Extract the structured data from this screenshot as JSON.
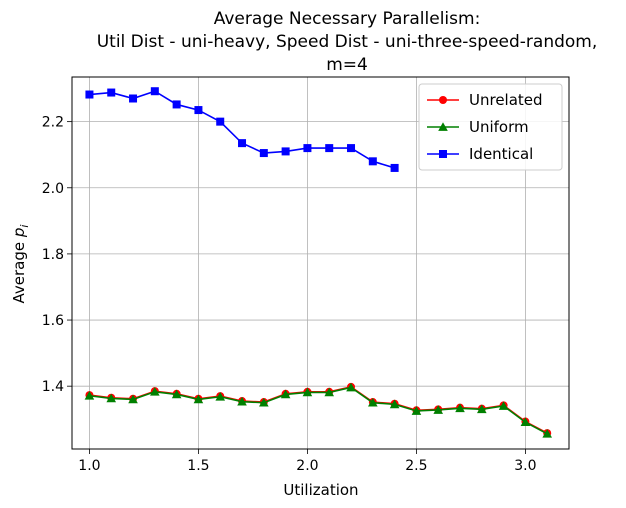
{
  "chart_data": {
    "type": "line",
    "title_lines": [
      "Average Necessary Parallelism:",
      "Util Dist - uni-heavy, Speed Dist - uni-three-speed-random,",
      "m=4"
    ],
    "xlabel": "Utilization",
    "ylabel_main": "Average ",
    "ylabel_sym": "p",
    "ylabel_sub": "i",
    "xlim": [
      0.92,
      3.2
    ],
    "ylim": [
      1.21,
      2.335
    ],
    "x_ticks": [
      1.0,
      1.5,
      2.0,
      2.5,
      3.0
    ],
    "x_tick_labels": [
      "1.0",
      "1.5",
      "2.0",
      "2.5",
      "3.0"
    ],
    "y_ticks": [
      1.4,
      1.6,
      1.8,
      2.0,
      2.2
    ],
    "y_tick_labels": [
      "1.4",
      "1.6",
      "1.8",
      "2.0",
      "2.2"
    ],
    "grid": true,
    "legend_position": "top-right",
    "series": [
      {
        "name": "Unrelated",
        "color": "#ff0000",
        "marker": "circle",
        "x": [
          1.0,
          1.1,
          1.2,
          1.3,
          1.4,
          1.5,
          1.6,
          1.7,
          1.8,
          1.9,
          2.0,
          2.1,
          2.2,
          2.3,
          2.4,
          2.5,
          2.6,
          2.7,
          2.8,
          2.9,
          3.0,
          3.1
        ],
        "y": [
          1.373,
          1.365,
          1.362,
          1.385,
          1.377,
          1.362,
          1.37,
          1.355,
          1.352,
          1.377,
          1.383,
          1.383,
          1.398,
          1.352,
          1.347,
          1.327,
          1.33,
          1.335,
          1.332,
          1.342,
          1.293,
          1.258
        ]
      },
      {
        "name": "Uniform",
        "color": "#008000",
        "marker": "triangle",
        "x": [
          1.0,
          1.1,
          1.2,
          1.3,
          1.4,
          1.5,
          1.6,
          1.7,
          1.8,
          1.9,
          2.0,
          2.1,
          2.2,
          2.3,
          2.4,
          2.5,
          2.6,
          2.7,
          2.8,
          2.9,
          3.0,
          3.1
        ],
        "y": [
          1.371,
          1.363,
          1.36,
          1.383,
          1.375,
          1.36,
          1.368,
          1.353,
          1.35,
          1.375,
          1.381,
          1.381,
          1.396,
          1.35,
          1.345,
          1.325,
          1.328,
          1.333,
          1.33,
          1.34,
          1.291,
          1.256
        ]
      },
      {
        "name": "Identical",
        "color": "#0000ff",
        "marker": "square",
        "x": [
          1.0,
          1.1,
          1.2,
          1.3,
          1.4,
          1.5,
          1.6,
          1.7,
          1.8,
          1.9,
          2.0,
          2.1,
          2.2,
          2.3,
          2.4
        ],
        "y": [
          2.282,
          2.288,
          2.27,
          2.292,
          2.252,
          2.235,
          2.2,
          2.135,
          2.105,
          2.11,
          2.12,
          2.12,
          2.12,
          2.08,
          2.06
        ]
      }
    ]
  }
}
